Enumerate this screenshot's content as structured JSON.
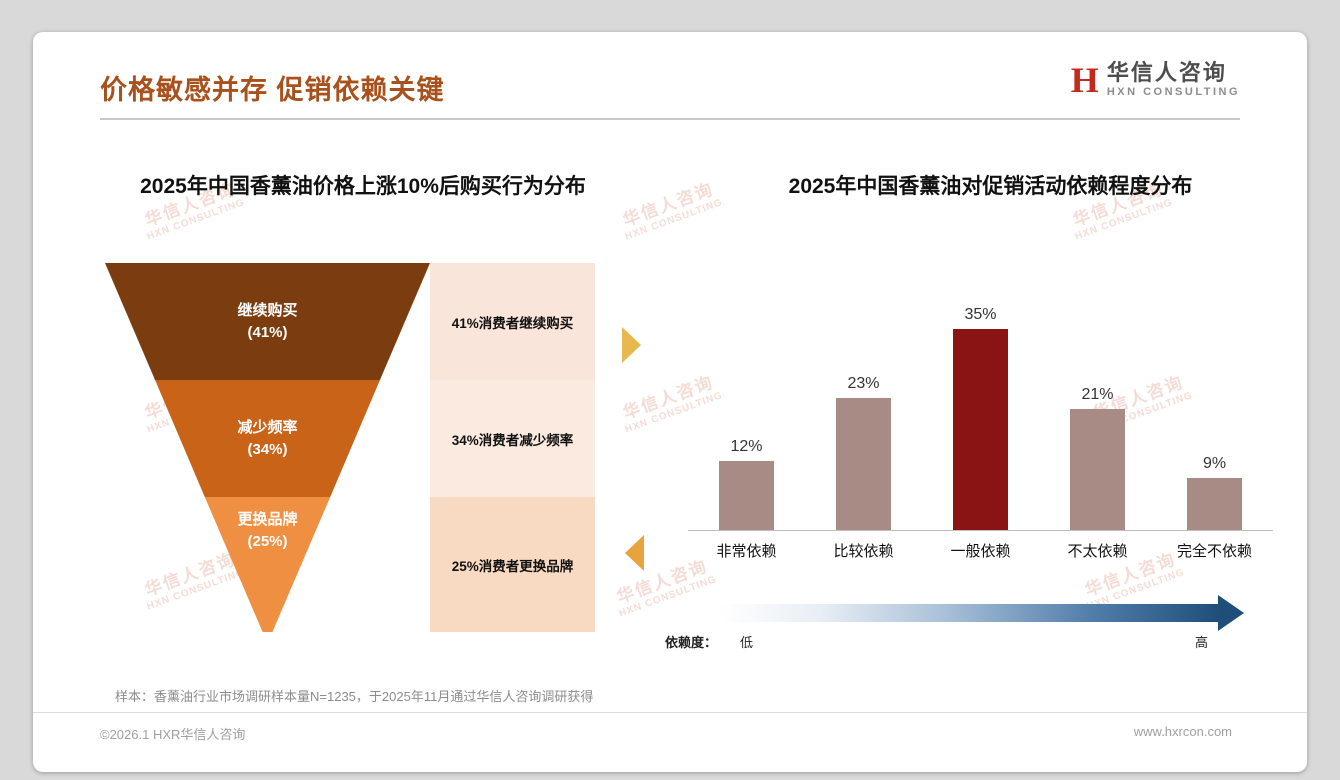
{
  "slide": {
    "title": "价格敏感并存 促销依赖关键",
    "logo": {
      "mark": "H",
      "name_cn": "华信人咨询",
      "name_en": "HXN CONSULTING"
    },
    "watermark": {
      "cn": "华信人咨询",
      "en": "HXN CONSULTING"
    },
    "sample_note": "样本：香薰油行业市场调研样本量N=1235，于2025年11月通过华信人咨询调研获得",
    "footer": {
      "left": "©2026.1 HXR华信人咨询",
      "right": "www.hxrcon.com"
    },
    "colors": {
      "title": "#A8511C",
      "logo_red": "#C5281C"
    }
  },
  "chart_data": [
    {
      "type": "funnel",
      "title": "2025年中国香薰油价格上涨10%后购买行为分布",
      "stages": [
        {
          "label": "继续购买",
          "pct_label": "(41%)",
          "value": 41,
          "annotation": "41%消费者继续购买",
          "color": "#7B3D10",
          "annotation_bg": "#FAE5DA"
        },
        {
          "label": "减少频率",
          "pct_label": "(34%)",
          "value": 34,
          "annotation": "34%消费者减少频率",
          "color": "#C96318",
          "annotation_bg": "#FBEADF"
        },
        {
          "label": "更换品牌",
          "pct_label": "(25%)",
          "value": 25,
          "annotation": "25%消费者更换品牌",
          "color": "#EF8F41",
          "annotation_bg": "#F8D9C1"
        }
      ]
    },
    {
      "type": "bar",
      "title": "2025年中国香薰油对促销活动依赖程度分布",
      "categories": [
        "非常依赖",
        "比较依赖",
        "一般依赖",
        "不太依赖",
        "完全不依赖"
      ],
      "values": [
        12,
        23,
        35,
        21,
        9
      ],
      "unit": "%",
      "ylim": [
        0,
        40
      ],
      "grid": false,
      "legend": "none",
      "bar_color": "#A88B84",
      "highlight_index": 2,
      "highlight_color": "#8A1414",
      "dependence_axis": {
        "label": "依赖度：",
        "low": "低",
        "high": "高",
        "gradient_from": "#FFFFFF",
        "gradient_to": "#1F4E79"
      }
    }
  ]
}
